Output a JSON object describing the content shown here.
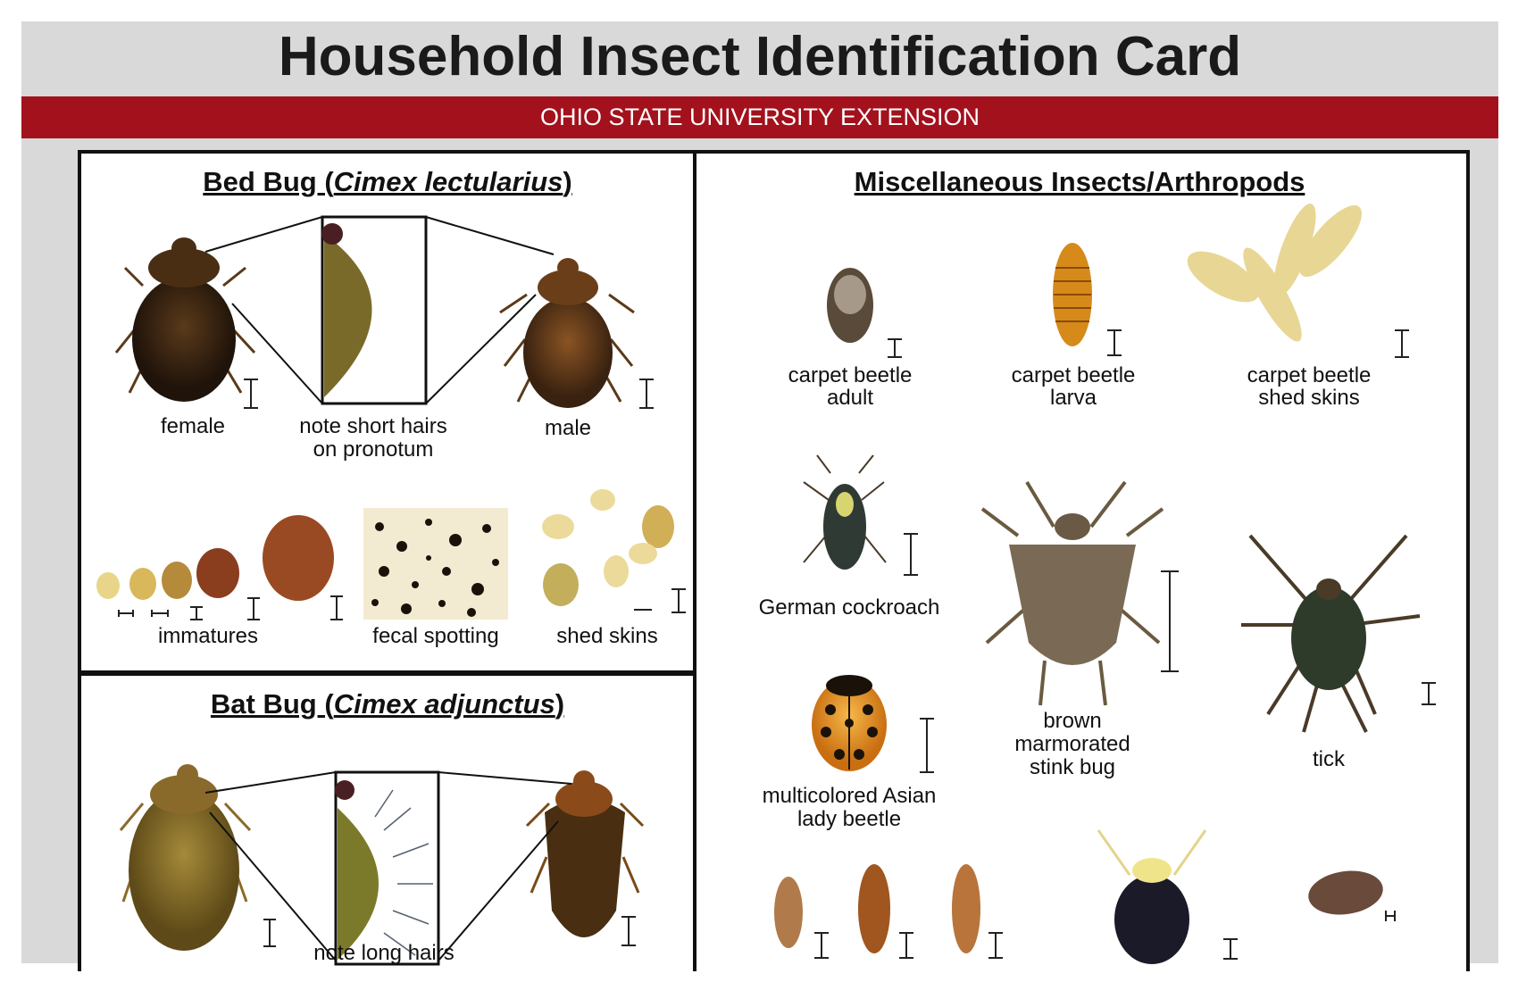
{
  "title": "Household Insect Identification Card",
  "banner": "OHIO STATE UNIVERSITY EXTENSION",
  "bed_bug": {
    "heading_common": "Bed Bug (",
    "heading_latin": "Cimex lectularius",
    "heading_close": ")",
    "labels": {
      "female": "female",
      "pronotum_1": "note short hairs",
      "pronotum_2": "on pronotum",
      "male": "male",
      "immatures": "immatures",
      "fecal": "fecal spotting",
      "shed": "shed skins"
    }
  },
  "bat_bug": {
    "heading_common": "Bat Bug (",
    "heading_latin": "Cimex adjunctus",
    "heading_close": ")",
    "labels": {
      "long_hairs": "note long hairs"
    }
  },
  "misc": {
    "heading": "Miscellaneous Insects/Arthropods",
    "labels": {
      "cb_adult_1": "carpet beetle",
      "cb_adult_2": "adult",
      "cb_larva_1": "carpet beetle",
      "cb_larva_2": "larva",
      "cb_shed_1": "carpet beetle",
      "cb_shed_2": "shed skins",
      "cockroach": "German cockroach",
      "stink_1": "brown",
      "stink_2": "marmorated",
      "stink_3": "stink bug",
      "tick": "tick",
      "lady_1": "multicolored Asian",
      "lady_2": "lady beetle"
    }
  },
  "colors": {
    "banner": "#a3111d",
    "card": "#d9d9d9"
  }
}
